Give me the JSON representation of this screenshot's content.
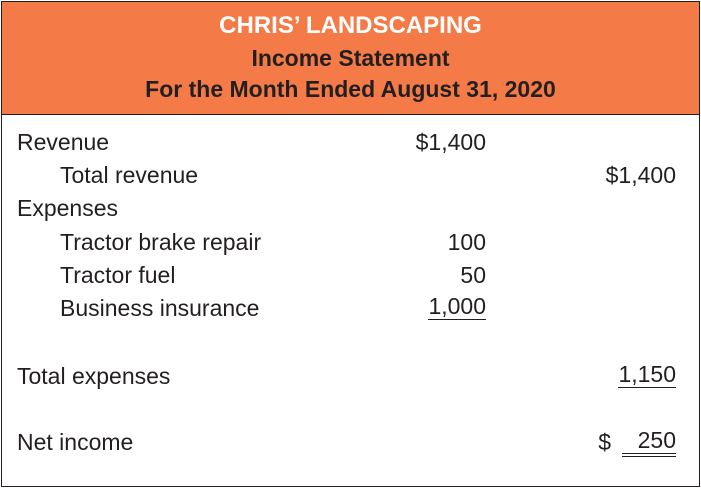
{
  "header": {
    "company": "CHRIS’ LANDSCAPING",
    "title": "Income Statement",
    "period": "For the Month Ended August 31, 2020"
  },
  "rows": {
    "revenue": {
      "label": "Revenue",
      "col1": "$1,400"
    },
    "total_revenue": {
      "label": "Total revenue",
      "col2": "$1,400"
    },
    "expenses": {
      "label": "Expenses"
    },
    "tractor_brake": {
      "label": "Tractor brake repair",
      "col1": "100"
    },
    "tractor_fuel": {
      "label": "Tractor fuel",
      "col1": "50"
    },
    "insurance": {
      "label": "Business insurance",
      "col1": "1,000"
    },
    "total_expenses": {
      "label": "Total expenses",
      "col2": "1,150"
    },
    "net_income": {
      "label": "Net income",
      "currency": "$",
      "col2": "250"
    }
  },
  "colors": {
    "header_bg": "#f47b47",
    "company_text": "#ffffff",
    "text": "#231f20"
  }
}
